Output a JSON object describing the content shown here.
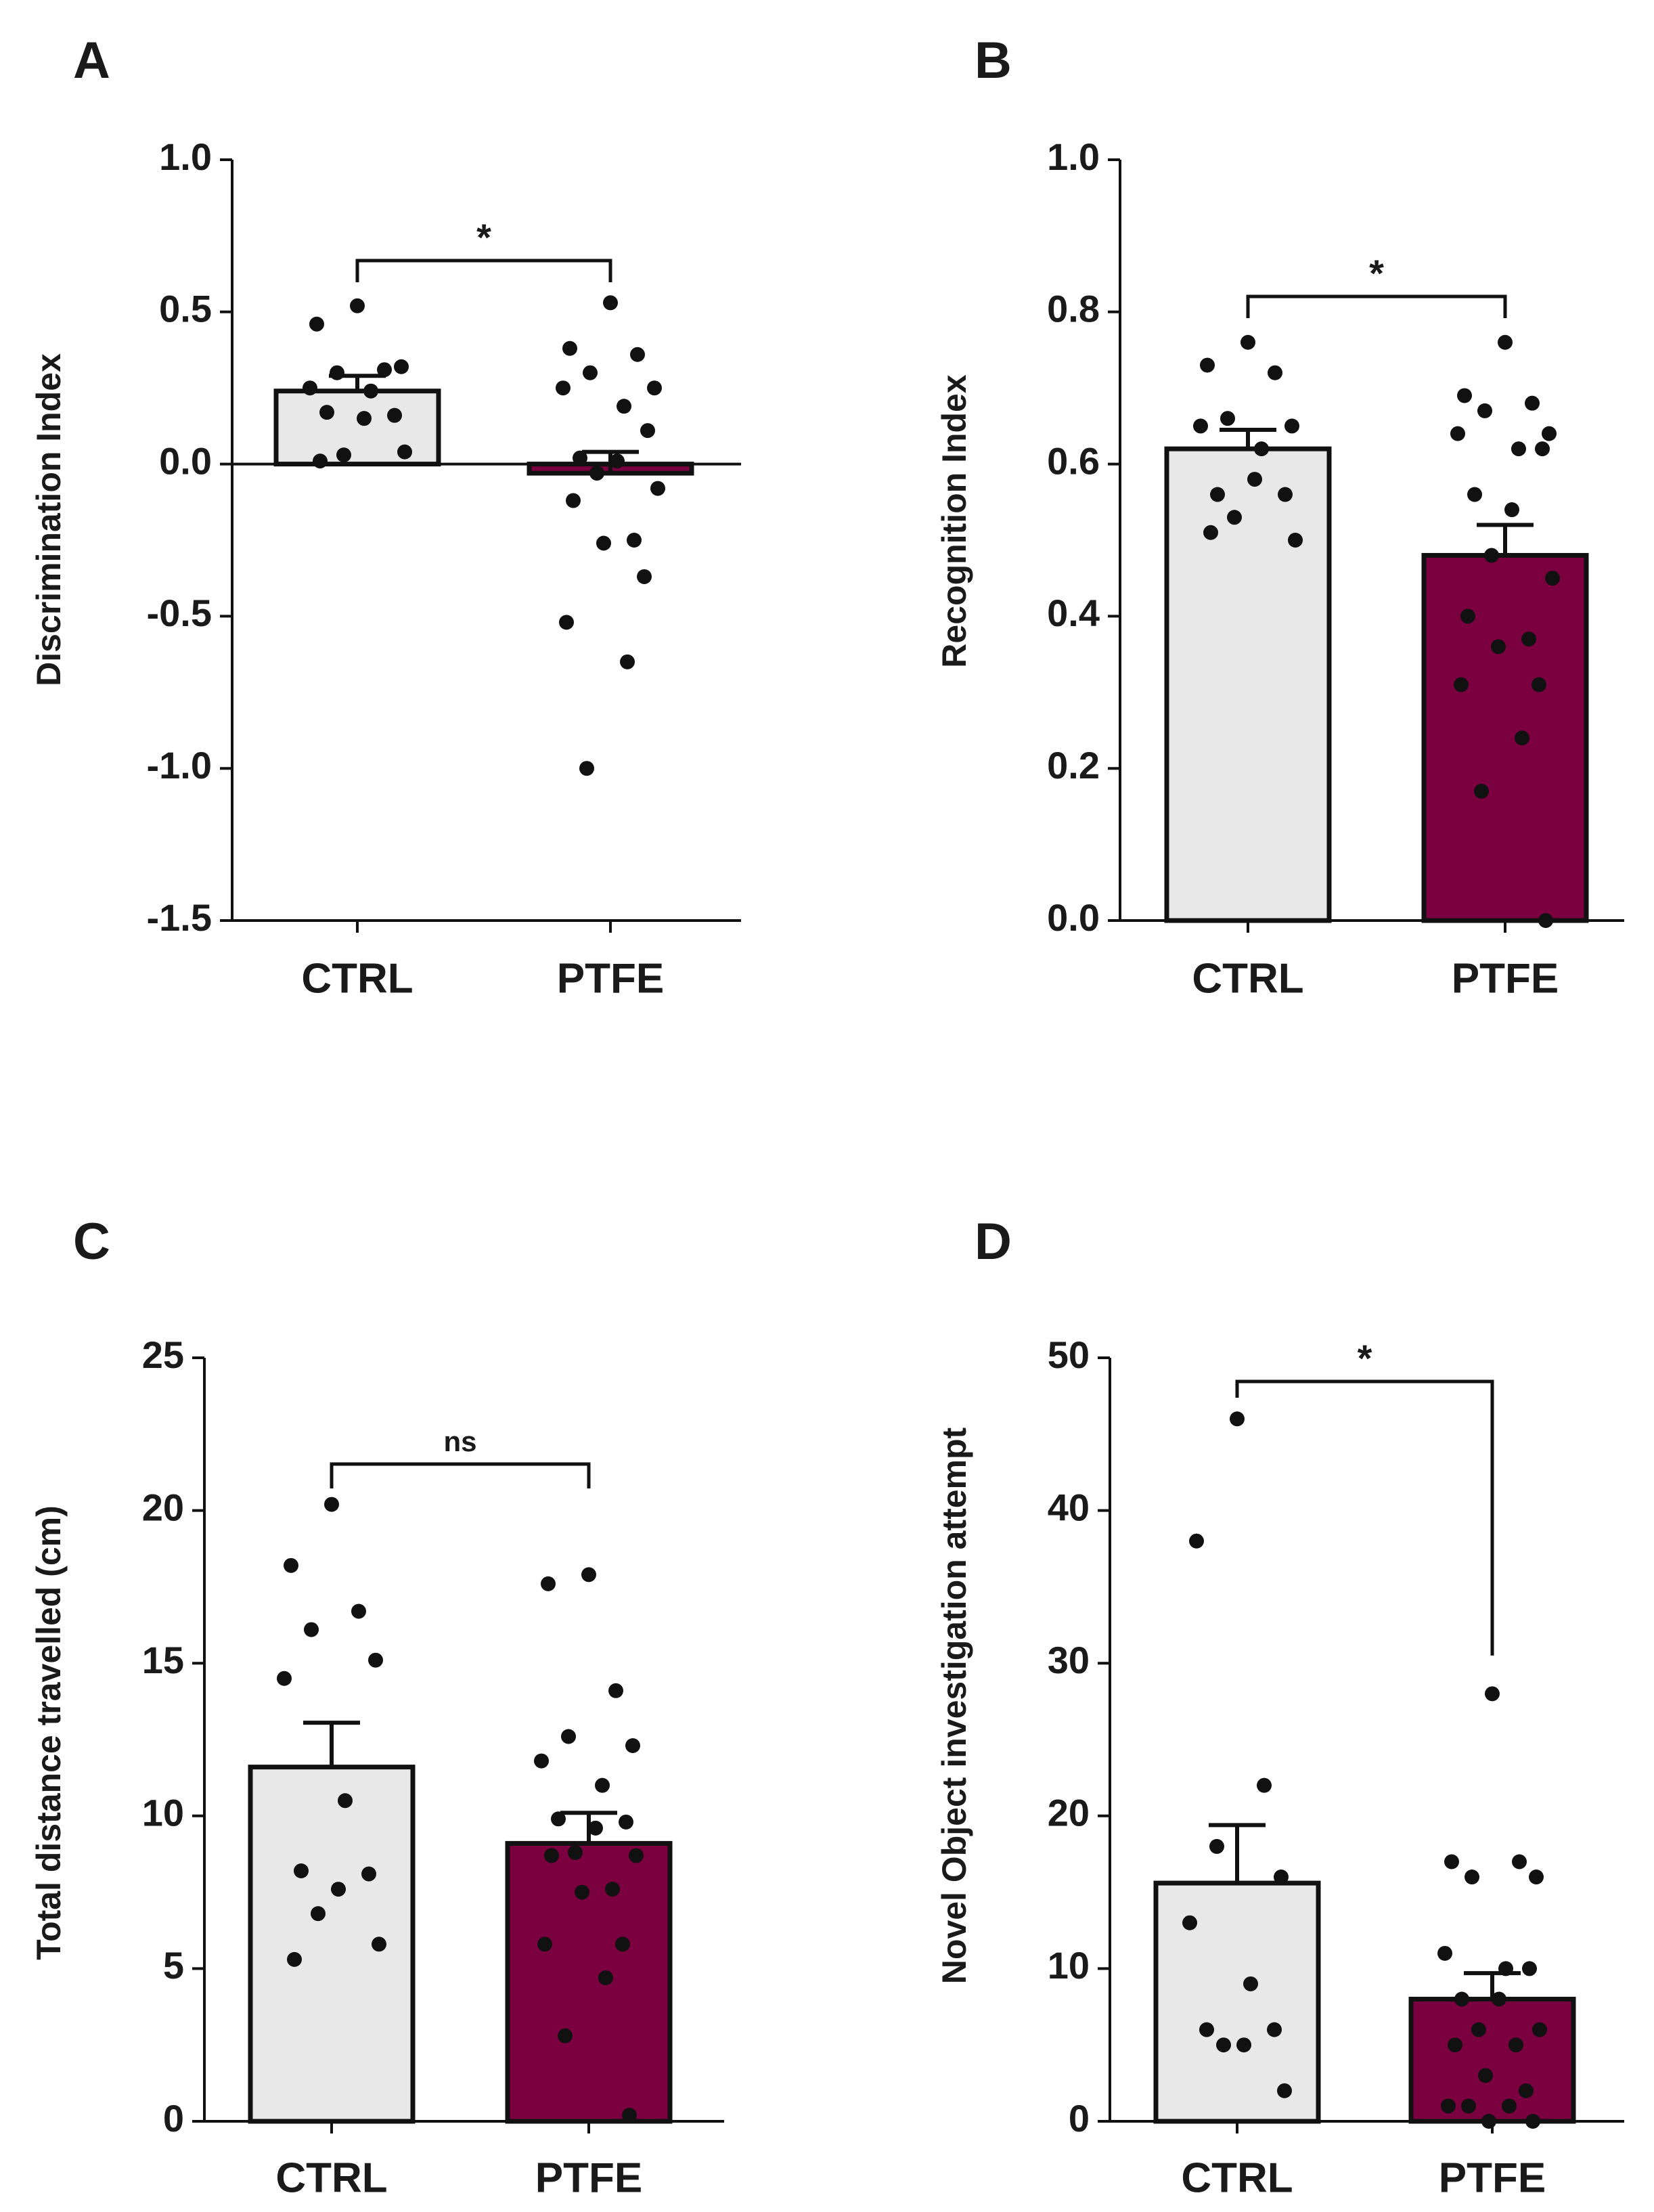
{
  "chart_data": [
    {
      "panel": "A",
      "type": "bar",
      "title": "",
      "xlabel": "",
      "ylabel": "Discrimination Index",
      "categories": [
        "CTRL",
        "PTFE"
      ],
      "ylim": [
        -1.5,
        1.0
      ],
      "yticks": [
        1.0,
        0.5,
        0.0,
        -0.5,
        -1.0,
        -1.5
      ],
      "ytick_labels": [
        "1.0",
        "0.5",
        "0.0",
        "-0.5",
        "-1.0",
        "-1.5"
      ],
      "series": [
        {
          "name": "CTRL",
          "mean": 0.24,
          "sem": 0.05,
          "color": "#e8e8e8",
          "points": [
            0.52,
            0.46,
            0.31,
            0.3,
            0.32,
            0.25,
            0.24,
            0.16,
            0.17,
            0.15,
            0.03,
            0.04,
            0.01
          ]
        },
        {
          "name": "PTFE",
          "mean": -0.03,
          "sem": 0.07,
          "color": "#7b0040",
          "points": [
            0.53,
            0.38,
            0.36,
            0.3,
            0.25,
            0.25,
            0.19,
            0.11,
            0.02,
            0.01,
            -0.03,
            -0.08,
            -0.12,
            -0.25,
            -0.26,
            -0.37,
            -0.52,
            -0.65,
            -1.0
          ]
        }
      ],
      "significance": "*",
      "ylabel_offset": 0
    },
    {
      "panel": "B",
      "type": "bar",
      "title": "",
      "xlabel": "",
      "ylabel": "Recognition Index",
      "categories": [
        "CTRL",
        "PTFE"
      ],
      "ylim": [
        0.0,
        1.0
      ],
      "yticks": [
        1.0,
        0.8,
        0.6,
        0.4,
        0.2,
        0.0
      ],
      "ytick_labels": [
        "1.0",
        "0.8",
        "0.6",
        "0.4",
        "0.2",
        "0.0"
      ],
      "series": [
        {
          "name": "CTRL",
          "mean": 0.62,
          "sem": 0.025,
          "color": "#e8e8e8",
          "points": [
            0.76,
            0.73,
            0.72,
            0.66,
            0.65,
            0.65,
            0.62,
            0.56,
            0.56,
            0.58,
            0.53,
            0.5,
            0.51
          ]
        },
        {
          "name": "PTFE",
          "mean": 0.48,
          "sem": 0.04,
          "color": "#7b0040",
          "points": [
            0.76,
            0.69,
            0.68,
            0.67,
            0.64,
            0.64,
            0.62,
            0.62,
            0.56,
            0.54,
            0.48,
            0.45,
            0.4,
            0.37,
            0.36,
            0.31,
            0.31,
            0.24,
            0.17,
            0.0
          ]
        }
      ],
      "significance": "*",
      "ylabel_offset": 0
    },
    {
      "panel": "C",
      "type": "bar",
      "title": "",
      "xlabel": "",
      "ylabel": "Total distance travelled (cm)",
      "categories": [
        "CTRL",
        "PTFE"
      ],
      "ylim": [
        0,
        25
      ],
      "yticks": [
        25,
        20,
        15,
        10,
        5,
        0
      ],
      "ytick_labels": [
        "25",
        "20",
        "15",
        "10",
        "5",
        "0"
      ],
      "series": [
        {
          "name": "CTRL",
          "mean": 11.6,
          "sem": 1.45,
          "color": "#e8e8e8",
          "points": [
            20.2,
            18.2,
            16.7,
            16.1,
            15.1,
            14.5,
            10.5,
            8.1,
            8.2,
            7.6,
            6.8,
            5.8,
            5.3
          ]
        },
        {
          "name": "PTFE",
          "mean": 9.1,
          "sem": 1.0,
          "color": "#7b0040",
          "points": [
            17.9,
            17.6,
            14.1,
            12.6,
            12.3,
            11.8,
            11.0,
            9.8,
            9.9,
            9.6,
            8.8,
            8.7,
            8.7,
            7.6,
            7.5,
            5.8,
            5.8,
            4.7,
            2.8,
            0.2
          ]
        }
      ],
      "significance": "ns",
      "ylabel_offset": 0
    },
    {
      "panel": "D",
      "type": "bar",
      "title": "",
      "xlabel": "",
      "ylabel": "Novel Object investigation attempt",
      "categories": [
        "CTRL",
        "PTFE"
      ],
      "ylim": [
        0,
        50
      ],
      "yticks": [
        50,
        40,
        30,
        20,
        10,
        0
      ],
      "ytick_labels": [
        "50",
        "40",
        "30",
        "20",
        "10",
        "0"
      ],
      "series": [
        {
          "name": "CTRL",
          "mean": 15.6,
          "sem": 3.8,
          "color": "#e8e8e8",
          "points": [
            46,
            38,
            22,
            18,
            16,
            13,
            9,
            6,
            6,
            5,
            5,
            2
          ]
        },
        {
          "name": "PTFE",
          "mean": 8.0,
          "sem": 1.7,
          "color": "#7b0040",
          "points": [
            28,
            17,
            17,
            16,
            16,
            11,
            10,
            10,
            8,
            8,
            6,
            6,
            5,
            5,
            3,
            2,
            1,
            1,
            1,
            0,
            0
          ]
        }
      ],
      "significance": "*",
      "ylabel_offset": 0
    }
  ]
}
